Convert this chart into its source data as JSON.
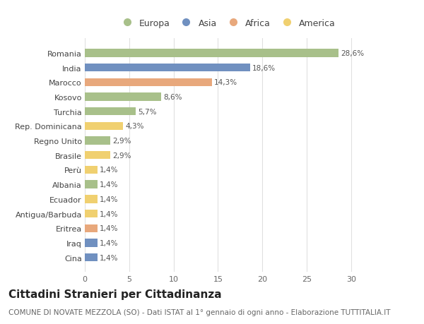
{
  "countries": [
    "Romania",
    "India",
    "Marocco",
    "Kosovo",
    "Turchia",
    "Rep. Dominicana",
    "Regno Unito",
    "Brasile",
    "Perù",
    "Albania",
    "Ecuador",
    "Antigua/Barbuda",
    "Eritrea",
    "Iraq",
    "Cina"
  ],
  "values": [
    28.6,
    18.6,
    14.3,
    8.6,
    5.7,
    4.3,
    2.9,
    2.9,
    1.4,
    1.4,
    1.4,
    1.4,
    1.4,
    1.4,
    1.4
  ],
  "labels": [
    "28,6%",
    "18,6%",
    "14,3%",
    "8,6%",
    "5,7%",
    "4,3%",
    "2,9%",
    "2,9%",
    "1,4%",
    "1,4%",
    "1,4%",
    "1,4%",
    "1,4%",
    "1,4%",
    "1,4%"
  ],
  "continents": [
    "Europa",
    "Asia",
    "Africa",
    "Europa",
    "Europa",
    "America",
    "Europa",
    "America",
    "America",
    "Europa",
    "America",
    "America",
    "Africa",
    "Asia",
    "Asia"
  ],
  "continent_colors": {
    "Europa": "#a8c08a",
    "Asia": "#7090c0",
    "Africa": "#e8a87c",
    "America": "#f0d070"
  },
  "legend_order": [
    "Europa",
    "Asia",
    "Africa",
    "America"
  ],
  "title": "Cittadini Stranieri per Cittadinanza",
  "subtitle": "COMUNE DI NOVATE MEZZOLA (SO) - Dati ISTAT al 1° gennaio di ogni anno - Elaborazione TUTTITALIA.IT",
  "xlim": [
    0,
    32
  ],
  "xticks": [
    0,
    5,
    10,
    15,
    20,
    25,
    30
  ],
  "background_color": "#ffffff",
  "bar_height": 0.55,
  "title_fontsize": 11,
  "subtitle_fontsize": 7.5,
  "label_fontsize": 7.5,
  "ytick_fontsize": 8,
  "xtick_fontsize": 8,
  "legend_fontsize": 9
}
